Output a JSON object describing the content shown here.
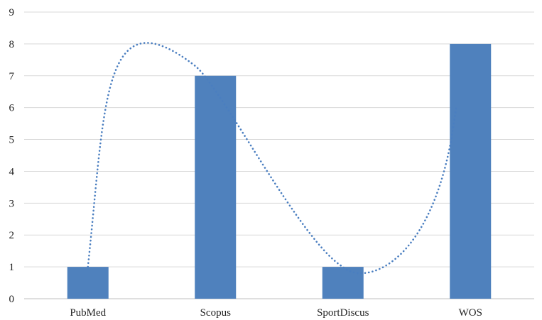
{
  "chart_data": {
    "type": "bar",
    "categories": [
      "PubMed",
      "Scopus",
      "SportDiscus",
      "WOS"
    ],
    "values": [
      1,
      7,
      1,
      8
    ],
    "ylim": [
      0,
      9
    ],
    "yticks": [
      0,
      1,
      2,
      3,
      4,
      5,
      6,
      7,
      8,
      9
    ],
    "grid": true,
    "legend": "none",
    "trendline": "dotted polynomial",
    "colors": {
      "bar": "#4f81bd",
      "trend": "#4a7ec0",
      "grid": "#d9d9d9"
    }
  }
}
